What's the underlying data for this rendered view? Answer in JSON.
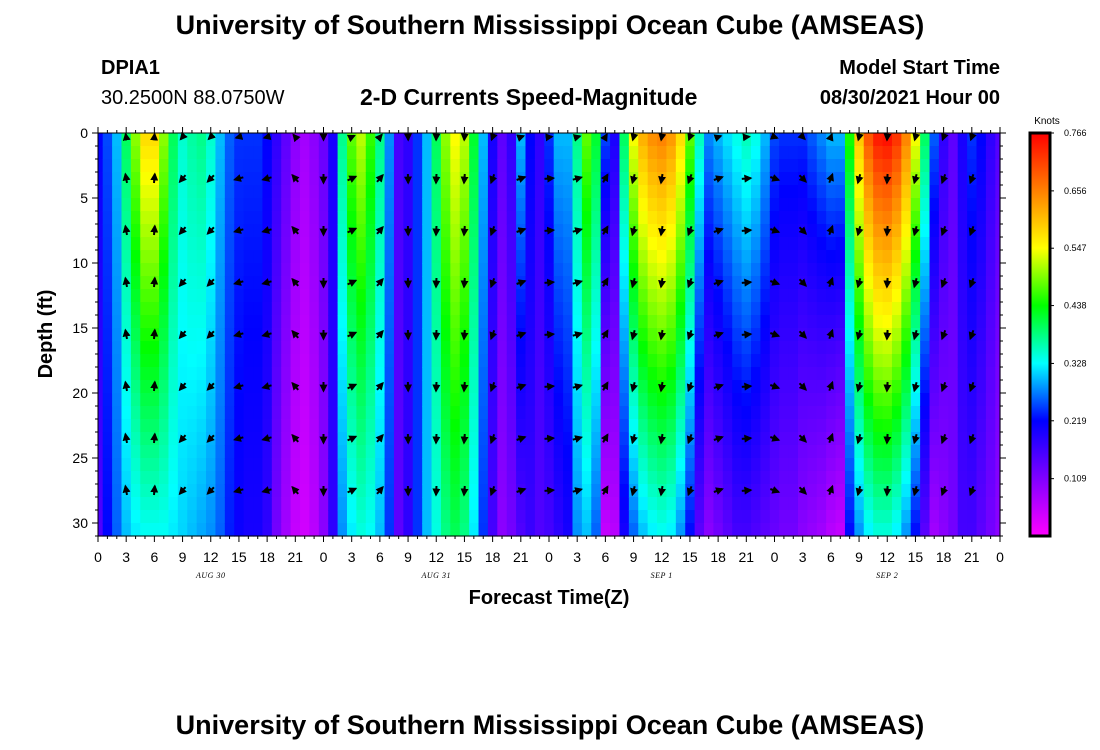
{
  "header": {
    "title": "University of Southern Mississippi Ocean Cube (AMSEAS)",
    "station_id": "DPIA1",
    "station_coords": "30.2500N  88.0750W",
    "plot_title": "2-D Currents Speed-Magnitude",
    "model_start_label": "Model Start Time",
    "model_start_value": "08/30/2021 Hour 00"
  },
  "footer": {
    "title": "University of Southern Mississippi Ocean Cube (AMSEAS)"
  },
  "chart_data": {
    "type": "heatmap",
    "title": "2-D Currents Speed-Magnitude",
    "xlabel": "Forecast Time(Z)",
    "ylabel": "Depth (ft)",
    "x_ticks": [
      "0",
      "3",
      "6",
      "9",
      "12",
      "15",
      "18",
      "21",
      "0",
      "3",
      "6",
      "9",
      "12",
      "15",
      "18",
      "21",
      "0",
      "3",
      "6",
      "9",
      "12",
      "15",
      "18",
      "21",
      "0",
      "3",
      "6",
      "9",
      "12",
      "15",
      "18",
      "21",
      "0"
    ],
    "x_range_hours": [
      0,
      96
    ],
    "date_labels": [
      {
        "label": "AUG 30",
        "hour": 12
      },
      {
        "label": "AUG 31",
        "hour": 36
      },
      {
        "label": "SEP 1",
        "hour": 60
      },
      {
        "label": "SEP 2",
        "hour": 84
      }
    ],
    "y_ticks": [
      "0",
      "5",
      "10",
      "15",
      "20",
      "25",
      "30"
    ],
    "y_range_ft": [
      0,
      31
    ],
    "colorbar": {
      "unit": "Knots",
      "range": [
        0.0,
        0.766
      ],
      "labels": [
        "0.766",
        "0.656",
        "0.547",
        "0.438",
        "0.328",
        "0.219",
        "0.109"
      ],
      "colors": [
        "#ff00ff",
        "#8000ff",
        "#0000ff",
        "#00ffff",
        "#00ff00",
        "#ffff00",
        "#ff8000",
        "#ff0000"
      ]
    },
    "columns": [
      {
        "hour": 0,
        "surface": 0.22,
        "bottom": 0.15,
        "dir": 180
      },
      {
        "hour": 1,
        "surface": 0.25,
        "bottom": 0.22,
        "dir": 180
      },
      {
        "hour": 2,
        "surface": 0.3,
        "bottom": 0.26,
        "dir": 180
      },
      {
        "hour": 3,
        "surface": 0.4,
        "bottom": 0.3,
        "dir": 350
      },
      {
        "hour": 4,
        "surface": 0.5,
        "bottom": 0.32,
        "dir": 355
      },
      {
        "hour": 5,
        "surface": 0.58,
        "bottom": 0.33,
        "dir": 0
      },
      {
        "hour": 6,
        "surface": 0.58,
        "bottom": 0.33,
        "dir": 5
      },
      {
        "hour": 7,
        "surface": 0.5,
        "bottom": 0.33,
        "dir": 45
      },
      {
        "hour": 8,
        "surface": 0.4,
        "bottom": 0.32,
        "dir": 215
      },
      {
        "hour": 9,
        "surface": 0.35,
        "bottom": 0.31,
        "dir": 220
      },
      {
        "hour": 10,
        "surface": 0.37,
        "bottom": 0.3,
        "dir": 225
      },
      {
        "hour": 11,
        "surface": 0.38,
        "bottom": 0.29,
        "dir": 225
      },
      {
        "hour": 12,
        "surface": 0.35,
        "bottom": 0.28,
        "dir": 225
      },
      {
        "hour": 13,
        "surface": 0.3,
        "bottom": 0.26,
        "dir": 240
      },
      {
        "hour": 14,
        "surface": 0.26,
        "bottom": 0.23,
        "dir": 250
      },
      {
        "hour": 15,
        "surface": 0.24,
        "bottom": 0.21,
        "dir": 255
      },
      {
        "hour": 16,
        "surface": 0.24,
        "bottom": 0.2,
        "dir": 260
      },
      {
        "hour": 17,
        "surface": 0.24,
        "bottom": 0.2,
        "dir": 260
      },
      {
        "hour": 18,
        "surface": 0.22,
        "bottom": 0.18,
        "dir": 255
      },
      {
        "hour": 19,
        "surface": 0.18,
        "bottom": 0.12,
        "dir": 280
      },
      {
        "hour": 20,
        "surface": 0.14,
        "bottom": 0.08,
        "dir": 300
      },
      {
        "hour": 21,
        "surface": 0.1,
        "bottom": 0.05,
        "dir": 320
      },
      {
        "hour": 22,
        "surface": 0.08,
        "bottom": 0.04,
        "dir": 150
      },
      {
        "hour": 23,
        "surface": 0.1,
        "bottom": 0.06,
        "dir": 170
      },
      {
        "hour": 24,
        "surface": 0.13,
        "bottom": 0.1,
        "dir": 180
      },
      {
        "hour": 25,
        "surface": 0.2,
        "bottom": 0.18,
        "dir": 60
      },
      {
        "hour": 26,
        "surface": 0.38,
        "bottom": 0.28,
        "dir": 65
      },
      {
        "hour": 27,
        "surface": 0.48,
        "bottom": 0.32,
        "dir": 65
      },
      {
        "hour": 28,
        "surface": 0.52,
        "bottom": 0.34,
        "dir": 60
      },
      {
        "hour": 29,
        "surface": 0.46,
        "bottom": 0.33,
        "dir": 55
      },
      {
        "hour": 30,
        "surface": 0.38,
        "bottom": 0.3,
        "dir": 40
      },
      {
        "hour": 31,
        "surface": 0.28,
        "bottom": 0.24,
        "dir": 170
      },
      {
        "hour": 32,
        "surface": 0.16,
        "bottom": 0.14,
        "dir": 175
      },
      {
        "hour": 33,
        "surface": 0.18,
        "bottom": 0.18,
        "dir": 178
      },
      {
        "hour": 34,
        "surface": 0.24,
        "bottom": 0.24,
        "dir": 180
      },
      {
        "hour": 35,
        "surface": 0.3,
        "bottom": 0.3,
        "dir": 182
      },
      {
        "hour": 36,
        "surface": 0.4,
        "bottom": 0.34,
        "dir": 183
      },
      {
        "hour": 37,
        "surface": 0.5,
        "bottom": 0.38,
        "dir": 185
      },
      {
        "hour": 38,
        "surface": 0.55,
        "bottom": 0.4,
        "dir": 185
      },
      {
        "hour": 39,
        "surface": 0.52,
        "bottom": 0.38,
        "dir": 185
      },
      {
        "hour": 40,
        "surface": 0.42,
        "bottom": 0.32,
        "dir": 190
      },
      {
        "hour": 41,
        "surface": 0.3,
        "bottom": 0.24,
        "dir": 195
      },
      {
        "hour": 42,
        "surface": 0.2,
        "bottom": 0.16,
        "dir": 200
      },
      {
        "hour": 43,
        "surface": 0.14,
        "bottom": 0.1,
        "dir": 200
      },
      {
        "hour": 44,
        "surface": 0.18,
        "bottom": 0.12,
        "dir": 150
      },
      {
        "hour": 45,
        "surface": 0.3,
        "bottom": 0.15,
        "dir": 70
      },
      {
        "hour": 46,
        "surface": 0.22,
        "bottom": 0.17,
        "dir": 80
      },
      {
        "hour": 47,
        "surface": 0.18,
        "bottom": 0.15,
        "dir": 82
      },
      {
        "hour": 48,
        "surface": 0.24,
        "bottom": 0.16,
        "dir": 85
      },
      {
        "hour": 49,
        "surface": 0.3,
        "bottom": 0.18,
        "dir": 85
      },
      {
        "hour": 50,
        "surface": 0.3,
        "bottom": 0.2,
        "dir": 80
      },
      {
        "hour": 51,
        "surface": 0.38,
        "bottom": 0.28,
        "dir": 75
      },
      {
        "hour": 52,
        "surface": 0.48,
        "bottom": 0.3,
        "dir": 60
      },
      {
        "hour": 53,
        "surface": 0.42,
        "bottom": 0.26,
        "dir": 45
      },
      {
        "hour": 54,
        "surface": 0.25,
        "bottom": 0.05,
        "dir": 30
      },
      {
        "hour": 55,
        "surface": 0.2,
        "bottom": 0.06,
        "dir": 200
      },
      {
        "hour": 56,
        "surface": 0.4,
        "bottom": 0.2,
        "dir": 200
      },
      {
        "hour": 57,
        "surface": 0.55,
        "bottom": 0.26,
        "dir": 195
      },
      {
        "hour": 58,
        "surface": 0.62,
        "bottom": 0.3,
        "dir": 195
      },
      {
        "hour": 59,
        "surface": 0.65,
        "bottom": 0.32,
        "dir": 190
      },
      {
        "hour": 60,
        "surface": 0.66,
        "bottom": 0.33,
        "dir": 190
      },
      {
        "hour": 61,
        "surface": 0.64,
        "bottom": 0.32,
        "dir": 190
      },
      {
        "hour": 62,
        "surface": 0.58,
        "bottom": 0.28,
        "dir": 195
      },
      {
        "hour": 63,
        "surface": 0.48,
        "bottom": 0.22,
        "dir": 200
      },
      {
        "hour": 64,
        "surface": 0.36,
        "bottom": 0.14,
        "dir": 220
      },
      {
        "hour": 65,
        "surface": 0.28,
        "bottom": 0.1,
        "dir": 250
      },
      {
        "hour": 66,
        "surface": 0.3,
        "bottom": 0.12,
        "dir": 70
      },
      {
        "hour": 67,
        "surface": 0.32,
        "bottom": 0.14,
        "dir": 80
      },
      {
        "hour": 68,
        "surface": 0.34,
        "bottom": 0.16,
        "dir": 82
      },
      {
        "hour": 69,
        "surface": 0.36,
        "bottom": 0.16,
        "dir": 85
      },
      {
        "hour": 70,
        "surface": 0.34,
        "bottom": 0.15,
        "dir": 85
      },
      {
        "hour": 71,
        "surface": 0.3,
        "bottom": 0.14,
        "dir": 95
      },
      {
        "hour": 72,
        "surface": 0.25,
        "bottom": 0.13,
        "dir": 110
      },
      {
        "hour": 73,
        "surface": 0.24,
        "bottom": 0.12,
        "dir": 120
      },
      {
        "hour": 74,
        "surface": 0.24,
        "bottom": 0.12,
        "dir": 130
      },
      {
        "hour": 75,
        "surface": 0.24,
        "bottom": 0.1,
        "dir": 135
      },
      {
        "hour": 76,
        "surface": 0.26,
        "bottom": 0.09,
        "dir": 140
      },
      {
        "hour": 77,
        "surface": 0.28,
        "bottom": 0.08,
        "dir": 150
      },
      {
        "hour": 78,
        "surface": 0.3,
        "bottom": 0.06,
        "dir": 20
      },
      {
        "hour": 79,
        "surface": 0.3,
        "bottom": 0.05,
        "dir": 200
      },
      {
        "hour": 80,
        "surface": 0.45,
        "bottom": 0.22,
        "dir": 200
      },
      {
        "hour": 81,
        "surface": 0.6,
        "bottom": 0.28,
        "dir": 195
      },
      {
        "hour": 82,
        "surface": 0.7,
        "bottom": 0.32,
        "dir": 190
      },
      {
        "hour": 83,
        "surface": 0.75,
        "bottom": 0.34,
        "dir": 188
      },
      {
        "hour": 84,
        "surface": 0.76,
        "bottom": 0.34,
        "dir": 185
      },
      {
        "hour": 85,
        "surface": 0.73,
        "bottom": 0.32,
        "dir": 185
      },
      {
        "hour": 86,
        "surface": 0.66,
        "bottom": 0.28,
        "dir": 190
      },
      {
        "hour": 87,
        "surface": 0.55,
        "bottom": 0.22,
        "dir": 195
      },
      {
        "hour": 88,
        "surface": 0.4,
        "bottom": 0.14,
        "dir": 200
      },
      {
        "hour": 89,
        "surface": 0.26,
        "bottom": 0.08,
        "dir": 200
      },
      {
        "hour": 90,
        "surface": 0.18,
        "bottom": 0.1,
        "dir": 200
      },
      {
        "hour": 91,
        "surface": 0.14,
        "bottom": 0.12,
        "dir": 200
      },
      {
        "hour": 92,
        "surface": 0.2,
        "bottom": 0.16,
        "dir": 200
      },
      {
        "hour": 93,
        "surface": 0.24,
        "bottom": 0.16,
        "dir": 200
      },
      {
        "hour": 94,
        "surface": 0.22,
        "bottom": 0.14,
        "dir": 200
      },
      {
        "hour": 95,
        "surface": 0.18,
        "bottom": 0.12,
        "dir": 200
      },
      {
        "hour": 96,
        "surface": 0.15,
        "bottom": 0.1,
        "dir": 200
      }
    ],
    "vector_depths_ft": [
      0,
      3.5,
      7.5,
      11.5,
      15.5,
      19.5,
      23.5,
      27.5
    ],
    "vector_hours_step": 3
  }
}
